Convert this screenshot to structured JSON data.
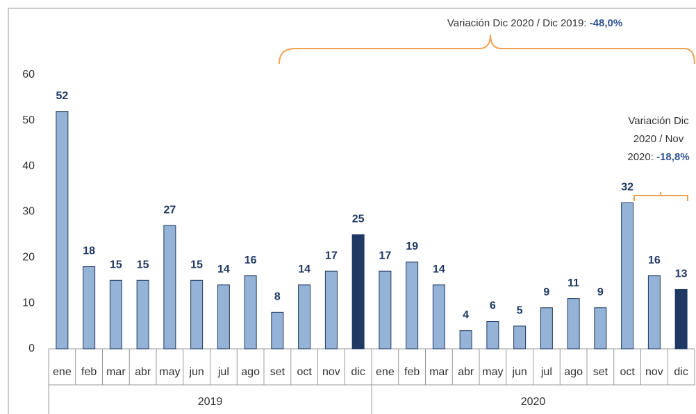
{
  "chart_data": {
    "type": "bar",
    "categories": [
      "ene",
      "feb",
      "mar",
      "abr",
      "may",
      "jun",
      "jul",
      "ago",
      "set",
      "oct",
      "nov",
      "dic",
      "ene",
      "feb",
      "mar",
      "abr",
      "may",
      "jun",
      "jul",
      "ago",
      "set",
      "oct",
      "nov",
      "dic"
    ],
    "groups": [
      "2019",
      "2020"
    ],
    "values": [
      52,
      18,
      15,
      15,
      27,
      15,
      14,
      16,
      8,
      14,
      17,
      25,
      17,
      19,
      14,
      4,
      6,
      5,
      9,
      11,
      9,
      32,
      16,
      13
    ],
    "colors": [
      "#95b3d7",
      "#95b3d7",
      "#95b3d7",
      "#95b3d7",
      "#95b3d7",
      "#95b3d7",
      "#95b3d7",
      "#95b3d7",
      "#95b3d7",
      "#95b3d7",
      "#95b3d7",
      "#1f3864",
      "#95b3d7",
      "#95b3d7",
      "#95b3d7",
      "#95b3d7",
      "#95b3d7",
      "#95b3d7",
      "#95b3d7",
      "#95b3d7",
      "#95b3d7",
      "#95b3d7",
      "#95b3d7",
      "#1f3864"
    ],
    "ylim": [
      0,
      60
    ],
    "yticks": [
      0,
      10,
      20,
      30,
      40,
      50,
      60
    ],
    "grid": false,
    "annotations": [
      {
        "lines": [
          "Variación Dic 2020 / Dic 2019:"
        ],
        "value": "-48,0%"
      },
      {
        "lines": [
          "Variación Dic",
          "2020 / Nov",
          "2020:"
        ],
        "value": "-18,8%"
      }
    ]
  }
}
